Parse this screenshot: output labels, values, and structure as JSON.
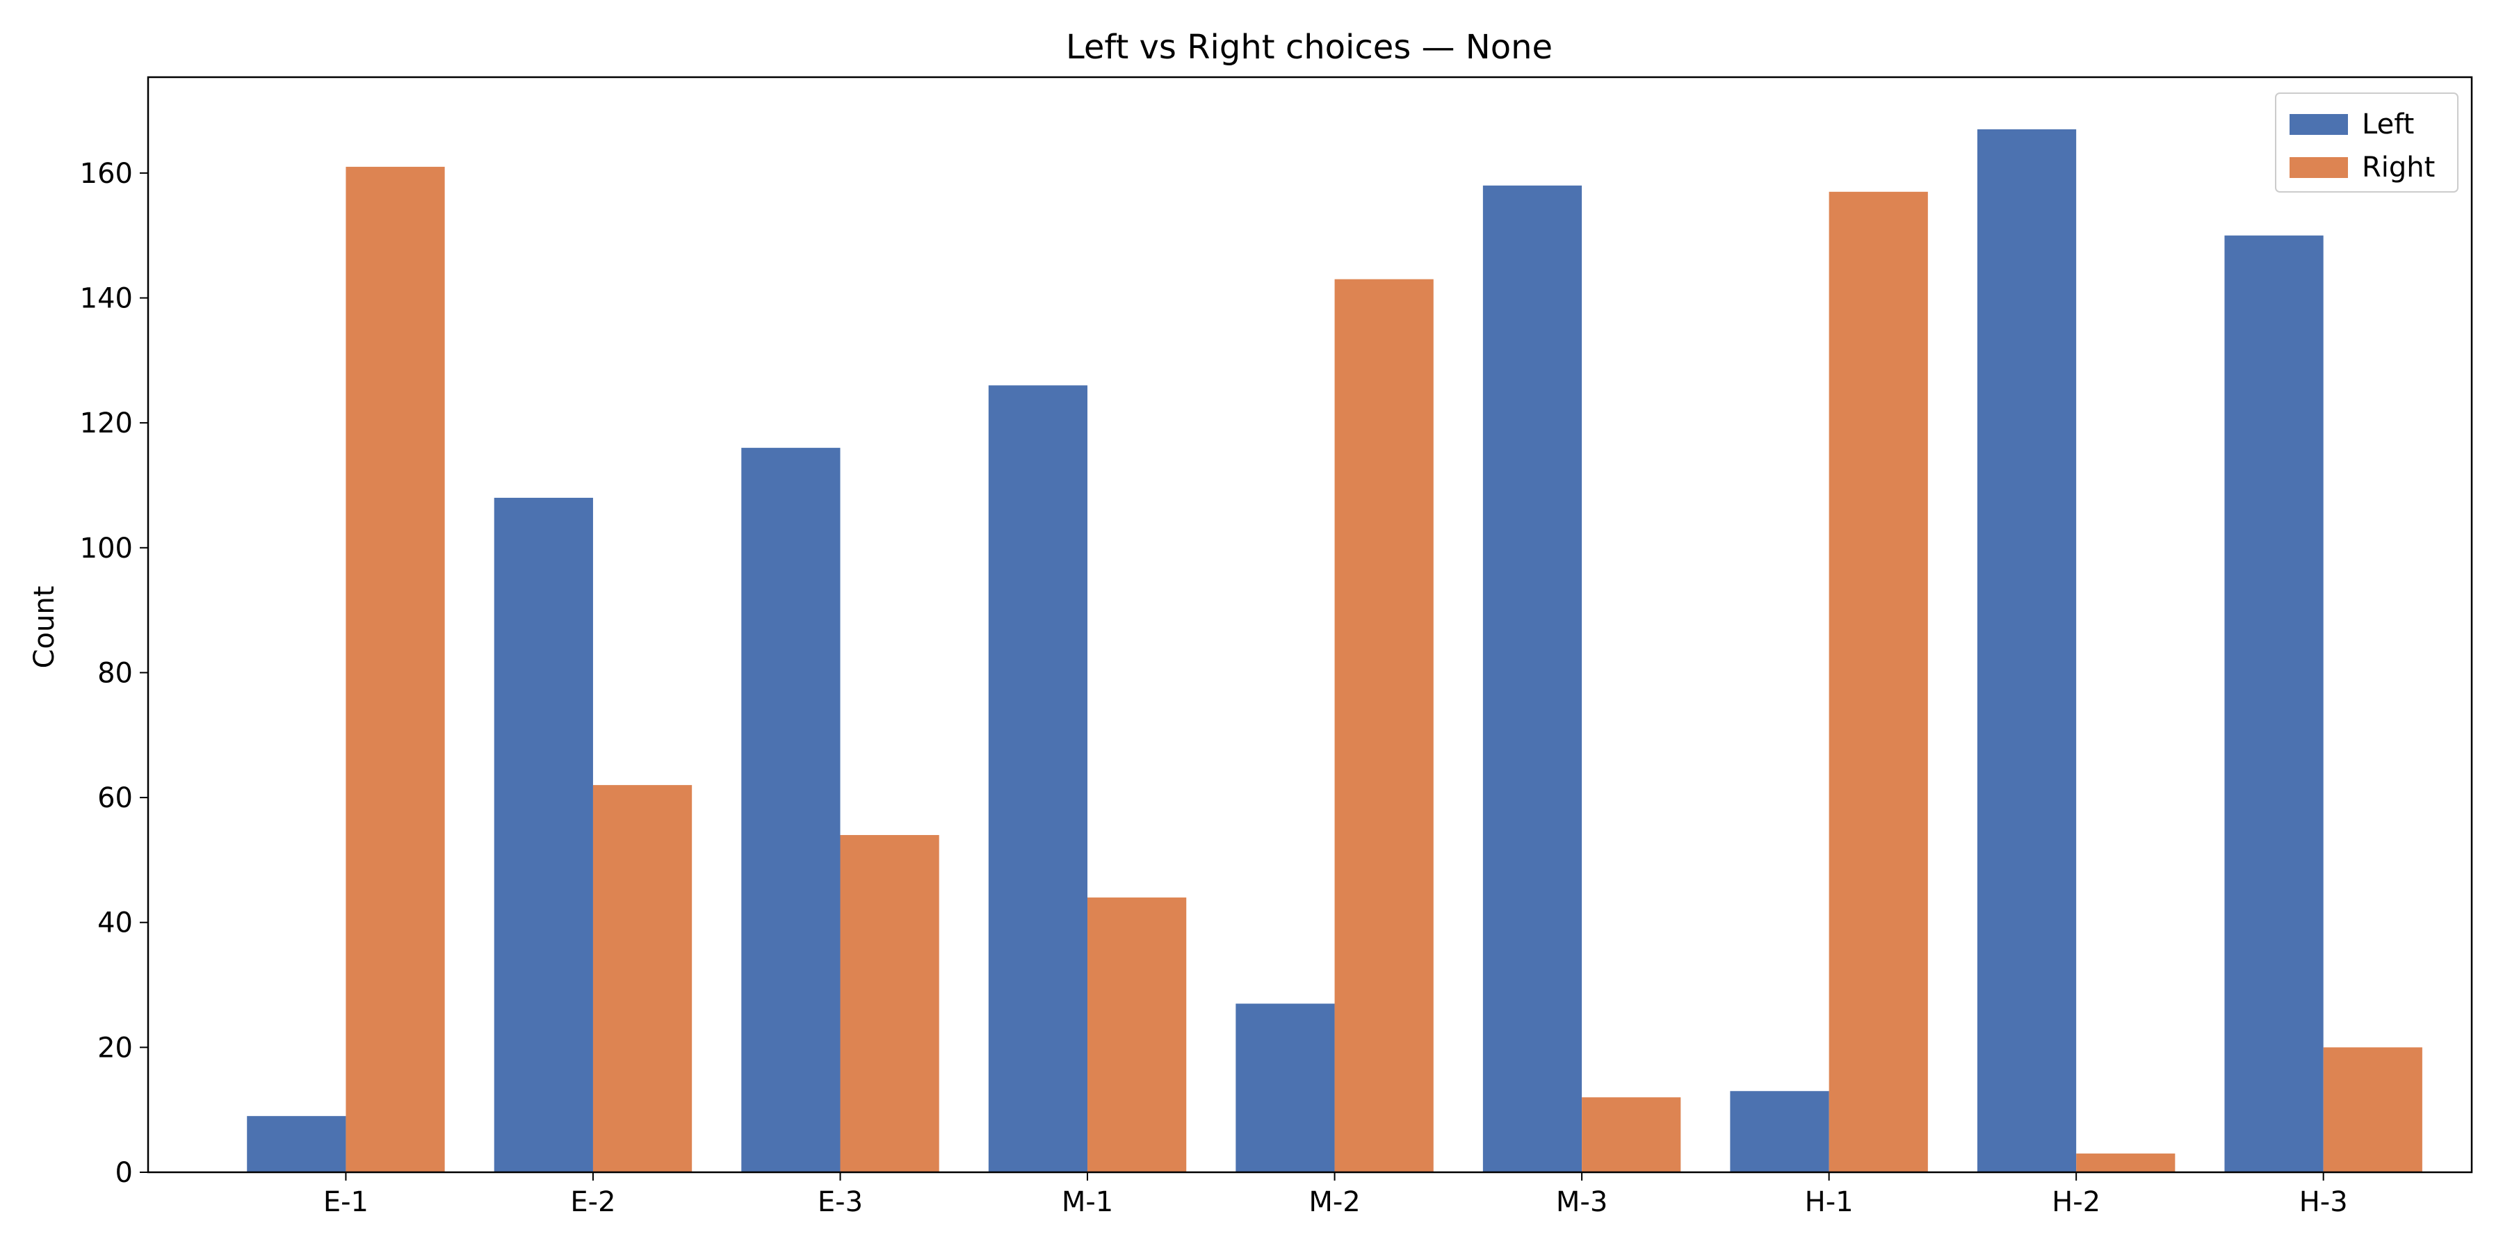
{
  "chart_data": {
    "type": "bar",
    "title": "Left vs Right choices — None",
    "xlabel": "",
    "ylabel": "Count",
    "categories": [
      "E-1",
      "E-2",
      "E-3",
      "M-1",
      "M-2",
      "M-3",
      "H-1",
      "H-2",
      "H-3"
    ],
    "series": [
      {
        "name": "Left",
        "color": "#4c72b0",
        "values": [
          9,
          108,
          116,
          126,
          27,
          158,
          13,
          167,
          150
        ]
      },
      {
        "name": "Right",
        "color": "#dd8452",
        "values": [
          161,
          62,
          54,
          44,
          143,
          12,
          157,
          3,
          20
        ]
      }
    ],
    "ylim": [
      0,
      175.35
    ],
    "yticks": [
      0,
      20,
      40,
      60,
      80,
      100,
      120,
      140,
      160
    ],
    "grid": false,
    "legend_position": "top-right"
  }
}
